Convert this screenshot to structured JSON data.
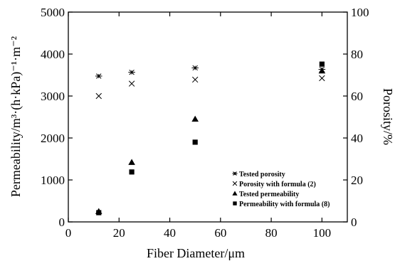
{
  "chart_data": {
    "type": "scatter",
    "title": "",
    "xlabel": "Fiber Diameter/μm",
    "ylabel": "Permeability/m³·(h·kPa)⁻¹·m⁻²",
    "y2label": "Porosity/%",
    "xlim": [
      0,
      110
    ],
    "ylim": [
      0,
      5000
    ],
    "y2lim": [
      0,
      100
    ],
    "xticks": [
      0,
      20,
      40,
      60,
      80,
      100
    ],
    "yticks": [
      0,
      1000,
      2000,
      3000,
      4000,
      5000
    ],
    "y2ticks": [
      0,
      20,
      40,
      60,
      80,
      100
    ],
    "grid": false,
    "legend_position": "bottom-right",
    "series": [
      {
        "name": "Tested porosity",
        "marker": "asterisk",
        "axis": "right",
        "x": [
          12,
          25,
          50,
          100
        ],
        "y": [
          69.5,
          71.3,
          73.4,
          72.7
        ]
      },
      {
        "name": "Porosity with formula (2)",
        "marker": "x",
        "axis": "right",
        "x": [
          12,
          25,
          50,
          100
        ],
        "y": [
          60.0,
          65.9,
          67.8,
          68.5
        ]
      },
      {
        "name": "Tested permeability",
        "marker": "triangle",
        "axis": "left",
        "x": [
          12,
          25,
          50,
          100
        ],
        "y": [
          250,
          1420,
          2450,
          3600
        ]
      },
      {
        "name": "Permeability with formula (8)",
        "marker": "square",
        "axis": "left",
        "x": [
          12,
          25,
          50,
          100
        ],
        "y": [
          220,
          1190,
          1900,
          3760
        ]
      }
    ]
  }
}
